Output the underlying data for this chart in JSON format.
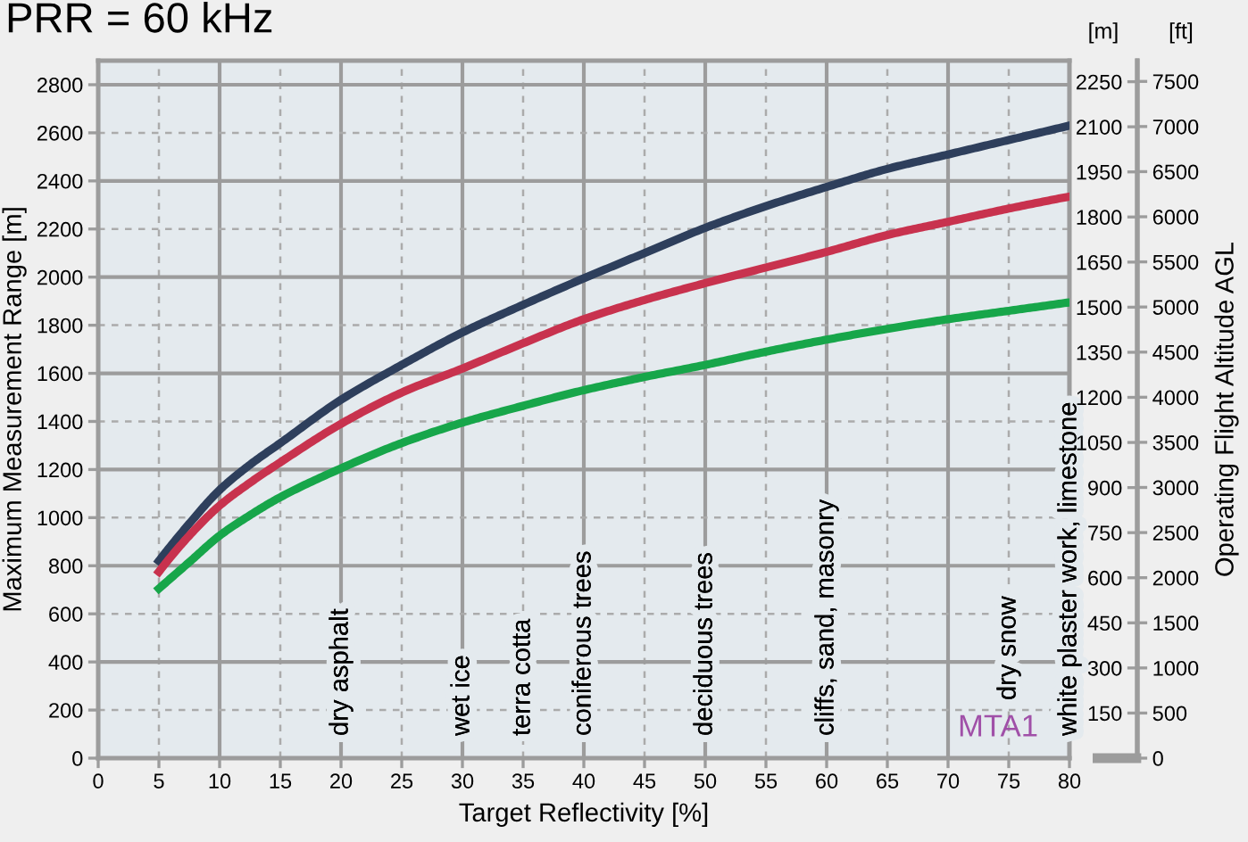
{
  "chart_data": {
    "type": "line",
    "title": "PRR = 60 kHz",
    "xlabel": "Target Reflectivity [%]",
    "ylabel": "Maximum Measurement Range [m]",
    "y2label": "[m]",
    "y3label": "[ft]",
    "x": [
      5,
      7.5,
      10,
      12.5,
      15,
      20,
      25,
      30,
      35,
      40,
      45,
      50,
      55,
      60,
      65,
      70,
      75,
      80
    ],
    "series": [
      {
        "color": "#2e3f5c",
        "values": [
          820,
          975,
          1115,
          1220,
          1310,
          1490,
          1635,
          1770,
          1885,
          1995,
          2100,
          2205,
          2295,
          2375,
          2450,
          2510,
          2570,
          2630
        ]
      },
      {
        "color": "#c8324e",
        "values": [
          775,
          925,
          1050,
          1145,
          1230,
          1390,
          1520,
          1620,
          1725,
          1825,
          1905,
          1975,
          2040,
          2105,
          2175,
          2230,
          2285,
          2335
        ]
      },
      {
        "color": "#17a64a",
        "values": [
          705,
          815,
          925,
          1010,
          1085,
          1205,
          1310,
          1395,
          1465,
          1530,
          1585,
          1635,
          1690,
          1740,
          1785,
          1825,
          1860,
          1895
        ]
      }
    ],
    "xlim": [
      0,
      80
    ],
    "xticks": [
      0,
      5,
      10,
      15,
      20,
      25,
      30,
      35,
      40,
      45,
      50,
      55,
      60,
      65,
      70,
      75,
      80
    ],
    "ylim": [
      0,
      2900
    ],
    "yticks": [
      0,
      200,
      400,
      600,
      800,
      1000,
      1200,
      1400,
      1600,
      1800,
      2000,
      2200,
      2400,
      2600,
      2800
    ],
    "y2lim": [
      0,
      2320
    ],
    "y2ticks": [
      {
        "value": 0,
        "label": null
      },
      150,
      300,
      450,
      600,
      750,
      900,
      1050,
      1200,
      1350,
      1500,
      1650,
      1800,
      1950,
      2100,
      2250
    ],
    "y3lim": [
      0,
      7730
    ],
    "y3ticks": [
      0,
      500,
      1000,
      1500,
      2000,
      2500,
      3000,
      3500,
      4000,
      4500,
      5000,
      5500,
      6000,
      6500,
      7000,
      7500
    ],
    "grid": true,
    "annotations": [
      "Operating Flight Altitude AGL",
      "MTA1",
      "dry asphalt",
      "wet ice",
      "terra cotta",
      "coniferous trees",
      "deciduous trees",
      "cliffs, sand, masonry",
      "dry snow",
      "white plaster work, limestone"
    ]
  }
}
